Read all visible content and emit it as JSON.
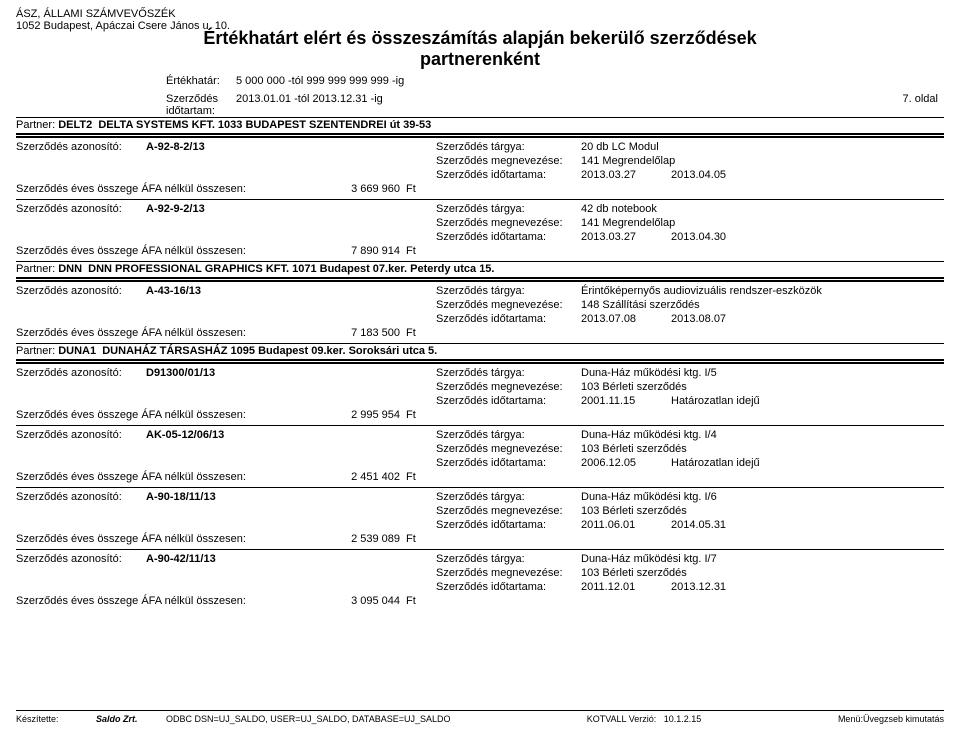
{
  "header": {
    "org": "ÁSZ,  ÁLLAMI SZÁMVEVŐSZÉK",
    "address": "1052  Budapest,  Apáczai Csere János u.  10.",
    "title_line1": "Értékhatárt elért és összeszámítás alapján bekerülő szerződések",
    "title_line2": "partnerenként",
    "limit_label": "Értékhatár:",
    "limit_value": "5 000 000 -tól 999 999 999 999 -ig",
    "period_label": "Szerződés időtartam:",
    "period_value": "2013.01.01 -tól 2013.12.31 -ig",
    "page": "7. oldal"
  },
  "labels": {
    "partner": "Partner:",
    "contract_id": "Szerződés azonosító:",
    "subject": "Szerződés tárgya:",
    "name": "Szerződés megnevezése:",
    "duration": "Szerződés időtartama:",
    "sum": "Szerződés éves összege ÁFA nélkül  összesen:",
    "unit": "Ft"
  },
  "partners": [
    {
      "code": "DELT2",
      "name": "DELTA SYSTEMS KFT.  1033 BUDAPEST SZENTENDREI út 39-53",
      "contracts": [
        {
          "id": "A-92-8-2/13",
          "subject": "20 db LC Modul",
          "name": "141 Megrendelőlap",
          "date_from": "2013.03.27",
          "date_to": "2013.04.05",
          "sum": "3 669 960"
        },
        {
          "id": "A-92-9-2/13",
          "subject": "42 db notebook",
          "name": "141 Megrendelőlap",
          "date_from": "2013.03.27",
          "date_to": "2013.04.30",
          "sum": "7 890 914"
        }
      ]
    },
    {
      "code": "DNN",
      "name": "DNN PROFESSIONAL GRAPHICS KFT.  1071 Budapest 07.ker. Peterdy utca 15.",
      "contracts": [
        {
          "id": "A-43-16/13",
          "subject": "Érintőképernyős audiovizuális rendszer-eszközök",
          "name": "148 Szállítási szerződés",
          "date_from": "2013.07.08",
          "date_to": "2013.08.07",
          "sum": "7 183 500"
        }
      ]
    },
    {
      "code": "DUNA1",
      "name": "DUNAHÁZ TÁRSASHÁZ  1095 Budapest 09.ker. Soroksári utca 5.",
      "contracts": [
        {
          "id": "D91300/01/13",
          "subject": "Duna-Ház működési ktg. I/5",
          "name": "103 Bérleti szerződés",
          "date_from": "2001.11.15",
          "date_to": "Határozatlan idejű",
          "sum": "2 995 954"
        },
        {
          "id": "AK-05-12/06/13",
          "subject": "Duna-Ház működési ktg. I/4",
          "name": "103 Bérleti szerződés",
          "date_from": "2006.12.05",
          "date_to": "Határozatlan idejű",
          "sum": "2 451 402"
        },
        {
          "id": "A-90-18/11/13",
          "subject": "Duna-Ház működési ktg. I/6",
          "name": "103 Bérleti szerződés",
          "date_from": "2011.06.01",
          "date_to": "2014.05.31",
          "sum": "2 539 089"
        },
        {
          "id": "A-90-42/11/13",
          "subject": "Duna-Ház működési ktg. I/7",
          "name": "103 Bérleti szerződés",
          "date_from": "2011.12.01",
          "date_to": "2013.12.31",
          "sum": "3 095 044"
        }
      ]
    }
  ],
  "footer": {
    "made_by_label": "Készítette:",
    "logo_text": "Saldo Zrt.",
    "dsn": "ODBC DSN=UJ_SALDO, USER=UJ_SALDO, DATABASE=UJ_SALDO",
    "version_label": "KOTVALL  Verzió:",
    "version": "10.1.2.15",
    "menu": "Menü:Üvegzseb kimutatás"
  }
}
